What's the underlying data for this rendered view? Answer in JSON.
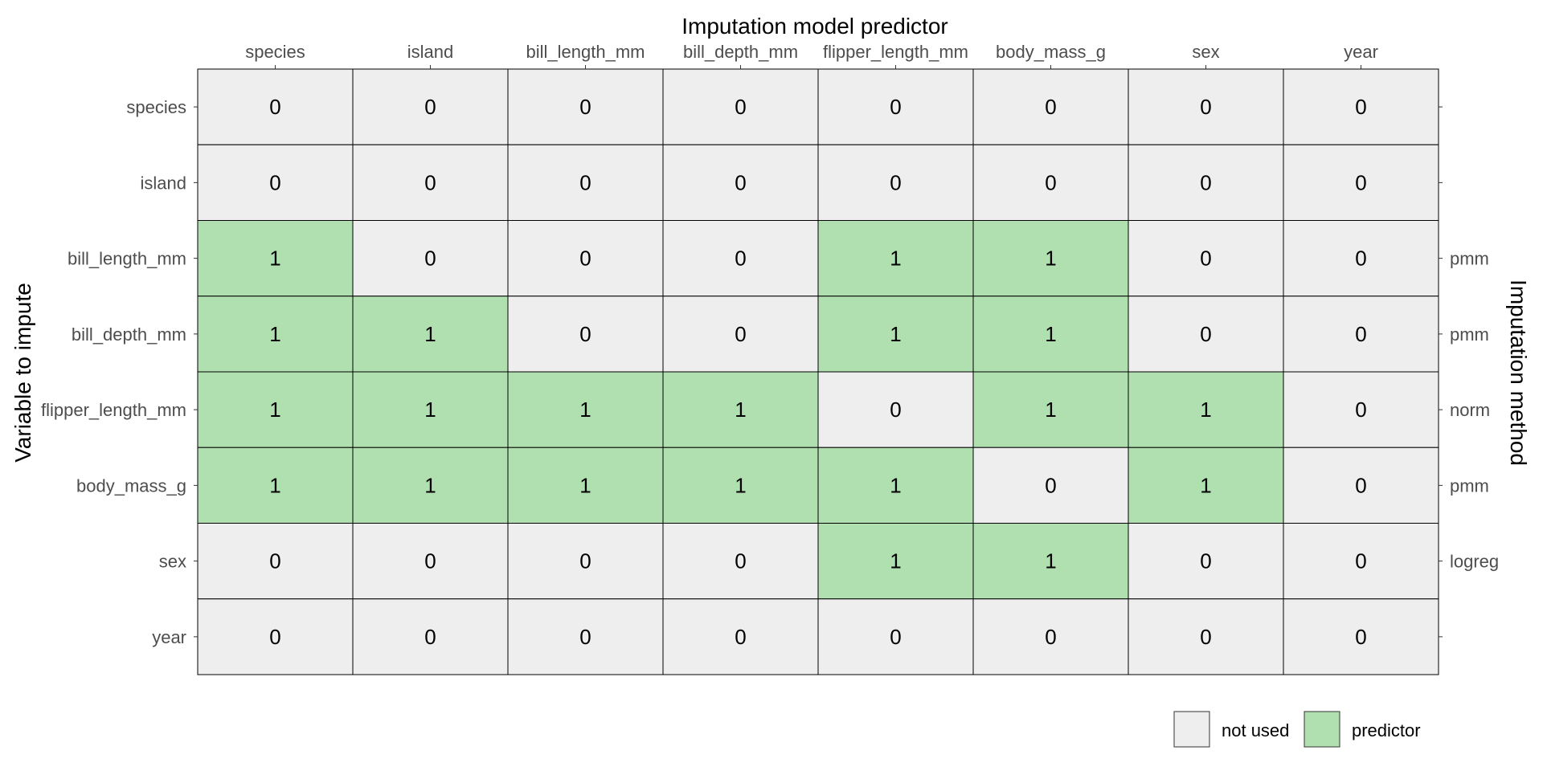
{
  "chart_data": {
    "type": "heatmap",
    "title": "",
    "xlabel": "Imputation model predictor",
    "ylabel": "Variable to impute",
    "y2label": "Imputation method",
    "columns": [
      "species",
      "island",
      "bill_length_mm",
      "bill_depth_mm",
      "flipper_length_mm",
      "body_mass_g",
      "sex",
      "year"
    ],
    "rows": [
      "species",
      "island",
      "bill_length_mm",
      "bill_depth_mm",
      "flipper_length_mm",
      "body_mass_g",
      "sex",
      "year"
    ],
    "values": [
      [
        0,
        0,
        0,
        0,
        0,
        0,
        0,
        0
      ],
      [
        0,
        0,
        0,
        0,
        0,
        0,
        0,
        0
      ],
      [
        1,
        0,
        0,
        0,
        1,
        1,
        0,
        0
      ],
      [
        1,
        1,
        0,
        0,
        1,
        1,
        0,
        0
      ],
      [
        1,
        1,
        1,
        1,
        0,
        1,
        1,
        0
      ],
      [
        1,
        1,
        1,
        1,
        1,
        0,
        1,
        0
      ],
      [
        0,
        0,
        0,
        0,
        1,
        1,
        0,
        0
      ],
      [
        0,
        0,
        0,
        0,
        0,
        0,
        0,
        0
      ]
    ],
    "methods": [
      "",
      "",
      "pmm",
      "pmm",
      "norm",
      "pmm",
      "logreg",
      ""
    ],
    "legend": [
      {
        "label": "not used",
        "value": 0,
        "color": "#eeeeee"
      },
      {
        "label": "predictor",
        "value": 1,
        "color": "#b0e0b0"
      }
    ],
    "legend_position": "bottom-right",
    "grid": false
  }
}
